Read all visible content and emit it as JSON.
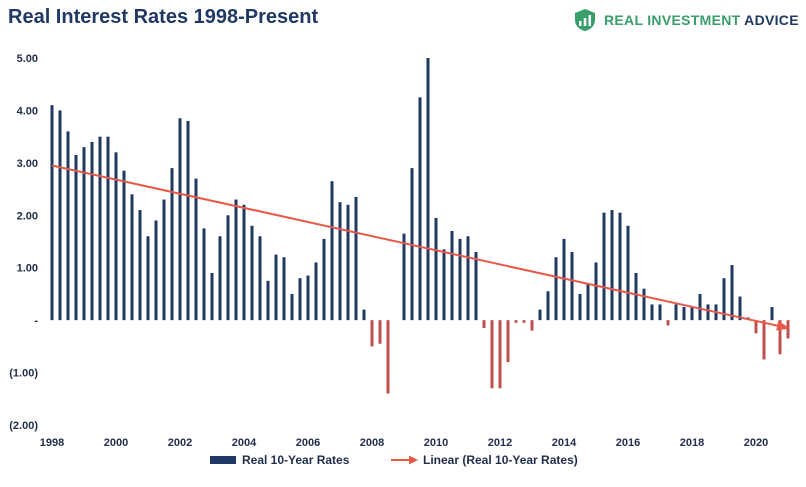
{
  "title": "Real Interest Rates 1998-Present",
  "brand": {
    "word1": "REAL INVESTMENT",
    "word2": "ADVICE",
    "logo_icon": "shield-bars-icon",
    "logo_color": "#3a9e6b",
    "text_color": "#1f3864"
  },
  "colors": {
    "positive": "#1f3864",
    "negative": "#c0504d",
    "trend": "#e8594a",
    "axis_text": "#1f2d4a"
  },
  "chart_data": {
    "type": "bar",
    "title": "Real Interest Rates 1998-Present",
    "xlabel": "",
    "ylabel": "",
    "ylim": [
      -2,
      5
    ],
    "xlim": [
      1998,
      2021.25
    ],
    "y_ticks": [
      5,
      4,
      3,
      2,
      1,
      0,
      -1,
      -2
    ],
    "y_tick_labels": [
      "5.00",
      "4.00",
      "3.00",
      "2.00",
      "1.00",
      "-",
      "(1.00)",
      "(2.00)"
    ],
    "x_ticks": [
      1998,
      2000,
      2002,
      2004,
      2006,
      2008,
      2010,
      2012,
      2014,
      2016,
      2018,
      2020
    ],
    "x_tick_labels": [
      "1998",
      "2000",
      "2002",
      "2004",
      "2006",
      "2008",
      "2010",
      "2012",
      "2014",
      "2016",
      "2018",
      "2020"
    ],
    "grid": false,
    "legend": "bottom",
    "series": [
      {
        "name": "Real 10-Year Rates",
        "type": "bar",
        "x": [
          1998.0,
          1998.25,
          1998.5,
          1998.75,
          1999.0,
          1999.25,
          1999.5,
          1999.75,
          2000.0,
          2000.25,
          2000.5,
          2000.75,
          2001.0,
          2001.25,
          2001.5,
          2001.75,
          2002.0,
          2002.25,
          2002.5,
          2002.75,
          2003.0,
          2003.25,
          2003.5,
          2003.75,
          2004.0,
          2004.25,
          2004.5,
          2004.75,
          2005.0,
          2005.25,
          2005.5,
          2005.75,
          2006.0,
          2006.25,
          2006.5,
          2006.75,
          2007.0,
          2007.25,
          2007.5,
          2007.75,
          2008.0,
          2008.25,
          2008.5,
          2008.75,
          2009.0,
          2009.25,
          2009.5,
          2009.75,
          2010.0,
          2010.25,
          2010.5,
          2010.75,
          2011.0,
          2011.25,
          2011.5,
          2011.75,
          2012.0,
          2012.25,
          2012.5,
          2012.75,
          2013.0,
          2013.25,
          2013.5,
          2013.75,
          2014.0,
          2014.25,
          2014.5,
          2014.75,
          2015.0,
          2015.25,
          2015.5,
          2015.75,
          2016.0,
          2016.25,
          2016.5,
          2016.75,
          2017.0,
          2017.25,
          2017.5,
          2017.75,
          2018.0,
          2018.25,
          2018.5,
          2018.75,
          2019.0,
          2019.25,
          2019.5,
          2019.75,
          2020.0,
          2020.25,
          2020.5,
          2020.75,
          2021.0
        ],
        "values": [
          4.1,
          4.0,
          3.6,
          3.15,
          3.3,
          3.4,
          3.5,
          3.5,
          3.2,
          2.85,
          2.4,
          2.1,
          1.6,
          1.9,
          2.3,
          2.9,
          3.85,
          3.8,
          2.7,
          1.75,
          0.9,
          1.6,
          2.0,
          2.3,
          2.2,
          1.8,
          1.6,
          0.75,
          1.25,
          1.2,
          0.5,
          0.8,
          0.85,
          1.1,
          1.55,
          2.65,
          2.25,
          2.2,
          2.35,
          0.2,
          -0.5,
          -0.45,
          -1.4,
          0.0,
          1.65,
          2.9,
          4.25,
          5.0,
          1.95,
          1.35,
          1.7,
          1.55,
          1.6,
          1.3,
          -0.15,
          -1.3,
          -1.3,
          -0.8,
          -0.05,
          -0.05,
          -0.2,
          0.2,
          0.55,
          1.2,
          1.55,
          1.3,
          0.5,
          0.7,
          1.1,
          2.05,
          2.1,
          2.05,
          1.8,
          0.9,
          0.6,
          0.3,
          0.3,
          -0.1,
          0.3,
          0.25,
          0.25,
          0.5,
          0.3,
          0.3,
          0.8,
          1.05,
          0.45,
          0.05,
          -0.25,
          -0.75,
          0.25,
          -0.65,
          -0.35
        ]
      },
      {
        "name": "Linear (Real 10-Year Rates)",
        "type": "line",
        "x": [
          1998.0,
          2021.0
        ],
        "values": [
          2.95,
          -0.15
        ]
      }
    ]
  }
}
